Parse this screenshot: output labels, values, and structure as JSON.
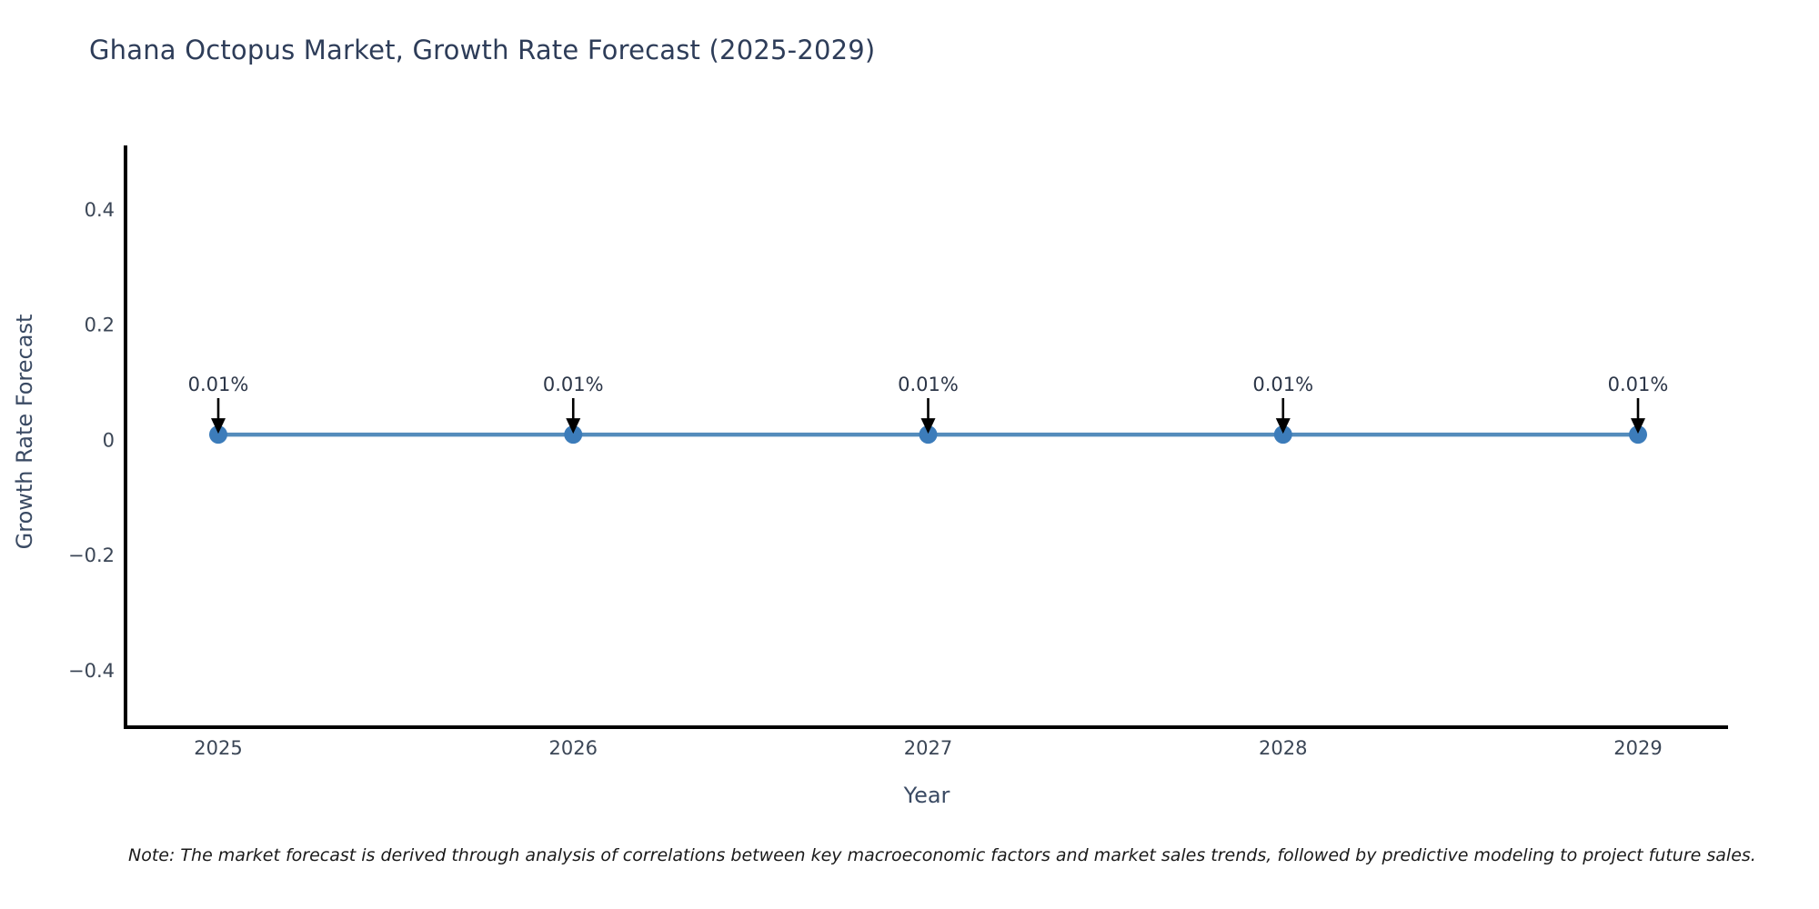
{
  "note": "Note: The market forecast is derived through analysis of correlations between key macroeconomic factors and market sales trends, followed by predictive modeling to project future sales.",
  "chart_data": {
    "type": "line",
    "title": "Ghana Octopus Market, Growth Rate Forecast (2025-2029)",
    "xlabel": "Year",
    "ylabel": "Growth Rate Forecast",
    "x": [
      2025,
      2026,
      2027,
      2028,
      2029
    ],
    "xtick_labels": [
      "2025",
      "2026",
      "2027",
      "2028",
      "2029"
    ],
    "series": [
      {
        "name": "Growth Rate Forecast",
        "values": [
          0.01,
          0.01,
          0.01,
          0.01,
          0.01
        ]
      }
    ],
    "point_labels": [
      "0.01%",
      "0.01%",
      "0.01%",
      "0.01%",
      "0.01%"
    ],
    "ylim": [
      -0.498,
      0.512
    ],
    "yticks": [
      0.4,
      0.2,
      0,
      -0.2,
      -0.4
    ],
    "ytick_labels": [
      "0.4",
      "0.2",
      "0",
      "−0.2",
      "−0.4"
    ],
    "grid": false,
    "legend": "none"
  },
  "colors": {
    "title": "#2e3d59",
    "axis_label": "#3a4a63",
    "tick_label": "#3b4656",
    "axis_line": "#000000",
    "line": "#548cbc",
    "marker": "#3c7cba",
    "arrow": "#000000",
    "annotation_text": "#2b3547",
    "note_text": "#1a1a1a"
  }
}
